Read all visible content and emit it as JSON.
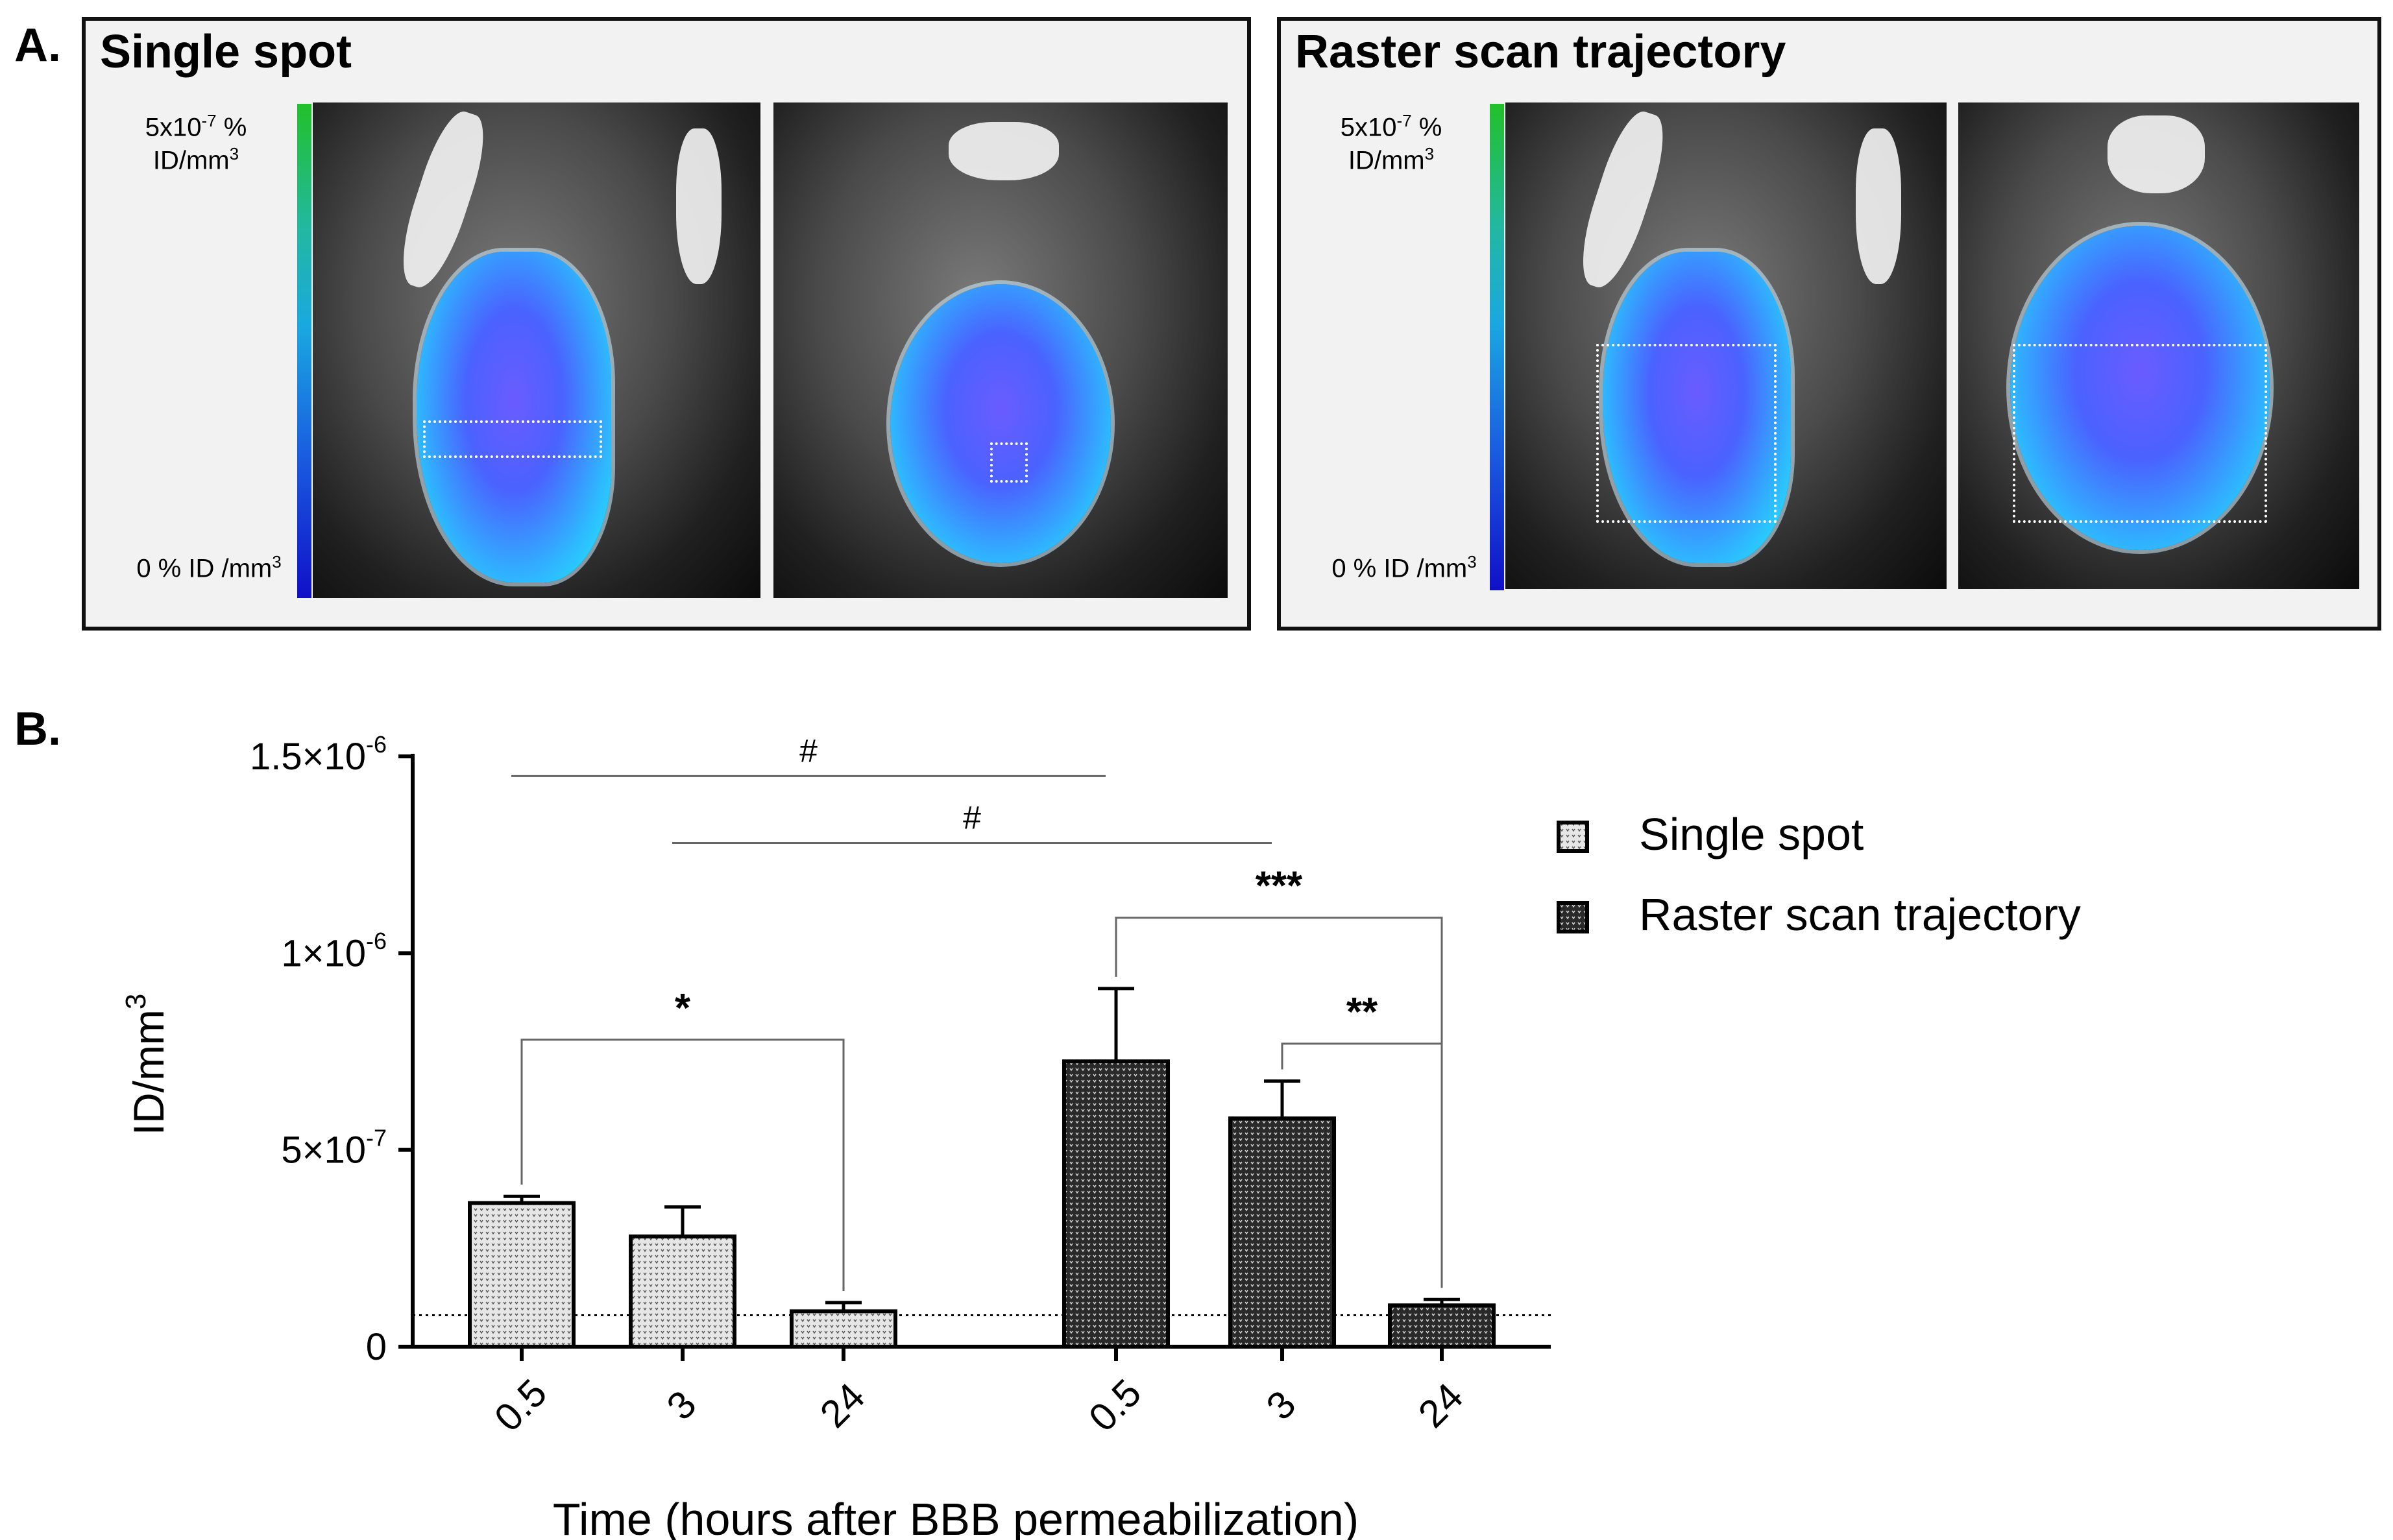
{
  "panel_a": {
    "letter": "A.",
    "single_spot": {
      "title": "Single spot",
      "scale_max": "5x10",
      "scale_max_exp": "-7",
      "scale_max_unit": "%",
      "scale_max_unit2": "ID/mm",
      "scale_max_unit2_exp": "3",
      "scale_min": "0 % ID /mm",
      "scale_min_exp": "3"
    },
    "raster_scan": {
      "title": "Raster scan trajectory",
      "scale_max": "5x10",
      "scale_max_exp": "-7",
      "scale_max_unit": "%",
      "scale_max_unit2": "ID/mm",
      "scale_max_unit2_exp": "3",
      "scale_min": "0 % ID /mm",
      "scale_min_exp": "3"
    },
    "colorbar_colors": [
      "#22c02a",
      "#1aa8e0",
      "#1010c8"
    ]
  },
  "panel_b": {
    "letter": "B."
  },
  "chart_data": {
    "type": "bar",
    "xlabel": "Time (hours after BBB permeabilization)",
    "ylabel": "ID/mm",
    "ylabel_exp": "3",
    "ylim": [
      0,
      1.5e-06
    ],
    "yticks": [
      {
        "value": 0,
        "mantissa": "0",
        "exp": ""
      },
      {
        "value": 5e-07,
        "mantissa": "5×10",
        "exp": "-7"
      },
      {
        "value": 1e-06,
        "mantissa": "1×10",
        "exp": "-6"
      },
      {
        "value": 1.5e-06,
        "mantissa": "1.5×10",
        "exp": "-6"
      }
    ],
    "baseline_dotted": 8e-08,
    "groups": [
      {
        "name": "Single spot",
        "fill": "#e6e6e6",
        "categories": [
          "0.5",
          "3",
          "24"
        ],
        "values": [
          3.65e-07,
          2.8e-07,
          9e-08
        ],
        "errors": [
          1.7e-08,
          7.5e-08,
          2.2e-08
        ]
      },
      {
        "name": "Raster scan trajectory",
        "fill": "#2a2a2a",
        "categories": [
          "0.5",
          "3",
          "24"
        ],
        "values": [
          7.25e-07,
          5.8e-07,
          1.05e-07
        ],
        "errors": [
          1.85e-07,
          9.5e-08,
          1.5e-08
        ]
      }
    ],
    "significance": [
      {
        "label": "*",
        "from": [
          0,
          0
        ],
        "to": [
          0,
          2
        ],
        "y": 7.8e-07,
        "type": "bracket"
      },
      {
        "label": "***",
        "from": [
          1,
          0
        ],
        "to": [
          1,
          2
        ],
        "y": 1.09e-06,
        "type": "bracket"
      },
      {
        "label": "**",
        "from": [
          1,
          1
        ],
        "to": [
          1,
          2
        ],
        "y": 7.7e-07,
        "type": "bracket"
      },
      {
        "label": "#",
        "from": [
          0,
          0
        ],
        "to": [
          1,
          0
        ],
        "y": 1.45e-06,
        "type": "line"
      },
      {
        "label": "#",
        "from": [
          0,
          1
        ],
        "to": [
          1,
          1
        ],
        "y": 1.28e-06,
        "type": "line"
      }
    ],
    "legend": {
      "position": "right",
      "items": [
        "Single spot",
        "Raster scan trajectory"
      ]
    }
  }
}
